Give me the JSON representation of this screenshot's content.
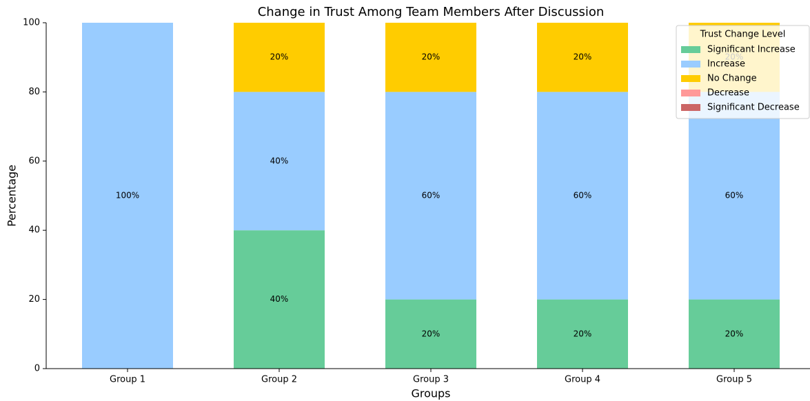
{
  "chart_data": {
    "type": "stacked_bar",
    "title": "Change in Trust Among Team Members After Discussion",
    "xlabel": "Groups",
    "ylabel": "Percentage",
    "categories": [
      "Group 1",
      "Group 2",
      "Group 3",
      "Group 4",
      "Group 5"
    ],
    "series": [
      {
        "name": "Significant Increase",
        "color": "#66cc99",
        "values": [
          0,
          40,
          20,
          20,
          20
        ],
        "value_labels": [
          null,
          "40%",
          "20%",
          "20%",
          "20%"
        ]
      },
      {
        "name": "Increase",
        "color": "#99ccff",
        "values": [
          100,
          40,
          60,
          60,
          60
        ],
        "value_labels": [
          "100%",
          "40%",
          "60%",
          "60%",
          "60%"
        ]
      },
      {
        "name": "No Change",
        "color": "#ffcc00",
        "values": [
          0,
          20,
          20,
          20,
          20
        ],
        "value_labels": [
          null,
          "20%",
          "20%",
          "20%",
          "20%"
        ]
      },
      {
        "name": "Decrease",
        "color": "#ff9999",
        "values": [
          0,
          0,
          0,
          0,
          0
        ],
        "value_labels": [
          null,
          null,
          null,
          null,
          null
        ]
      },
      {
        "name": "Significant Decrease",
        "color": "#cc6666",
        "values": [
          0,
          0,
          0,
          0,
          0
        ],
        "value_labels": [
          null,
          null,
          null,
          null,
          null
        ]
      }
    ],
    "legend_title": "Trust Change Level",
    "legend": "upper right",
    "ylim": [
      0,
      100
    ],
    "yticks": [
      0,
      20,
      40,
      60,
      80,
      100
    ],
    "grid": false
  }
}
